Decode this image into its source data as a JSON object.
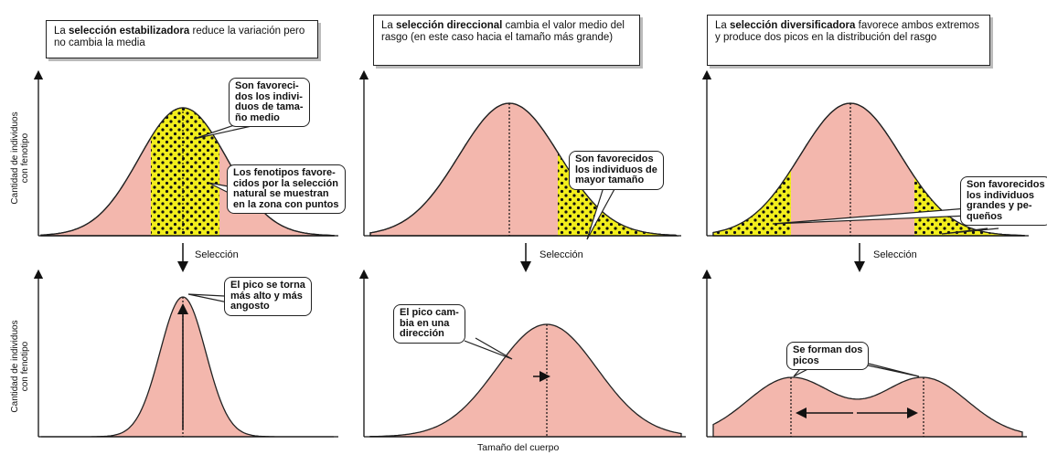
{
  "panels": [
    {
      "header": {
        "before": "La ",
        "bold": "selección estabilizadora",
        "after": " reduce la variación pero no cambia la media"
      },
      "top_callouts": [
        {
          "lines": [
            "Son favoreci-",
            "dos los indivi-",
            "duos de tama-",
            "ño medio"
          ]
        },
        {
          "lines": [
            "Los fenotipos favore-",
            "cidos por la selección",
            "natural se muestran",
            "en la zona con puntos"
          ]
        }
      ],
      "selection": "Selección",
      "bottom_callouts": [
        {
          "lines": [
            "El pico se torna",
            "más alto y más",
            "angosto"
          ]
        }
      ]
    },
    {
      "header": {
        "before": "La ",
        "bold": "selección direccional",
        "after": " cambia el valor medio del rasgo (en este caso hacia el tamaño más grande)"
      },
      "top_callouts": [
        {
          "lines": [
            "Son favorecidos",
            "los individuos de",
            "mayor tamaño"
          ]
        }
      ],
      "selection": "Selección",
      "bottom_callouts": [
        {
          "lines": [
            "El pico cam-",
            "bia en una",
            "dirección"
          ]
        }
      ]
    },
    {
      "header": {
        "before": "La ",
        "bold": "selección diversificadora",
        "after": " favorece ambos extremos y produce dos picos en la distribución del rasgo"
      },
      "top_callouts": [
        {
          "lines": [
            "Son favorecidos",
            "los individuos",
            "grandes y pe-",
            "queños"
          ]
        }
      ],
      "selection": "Selección",
      "bottom_callouts": [
        {
          "lines": [
            "Se forman dos",
            "picos"
          ]
        }
      ]
    }
  ],
  "y_axis_labels": [
    {
      "lines": [
        "Cantidad de individuos",
        "con fenotipo"
      ]
    },
    {
      "lines": [
        "Cantidad de individuos",
        "con fenotipo"
      ]
    }
  ],
  "x_axis_label": "Tamaño del cuerpo"
}
